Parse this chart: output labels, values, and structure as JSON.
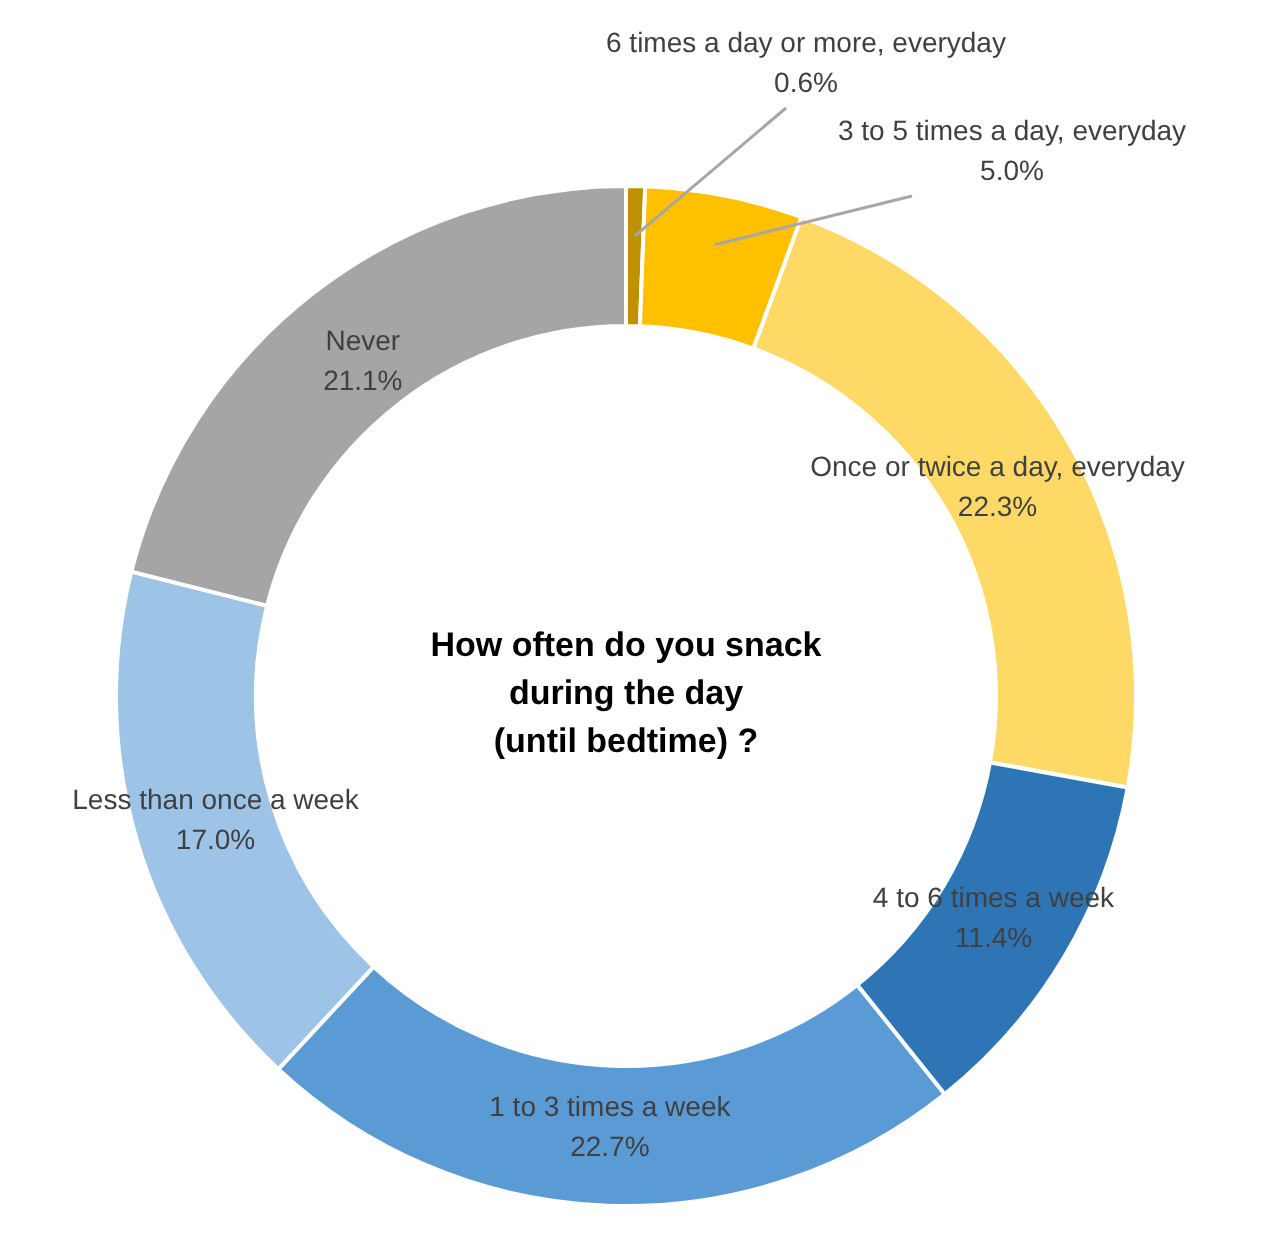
{
  "chart_data": {
    "type": "donut",
    "title": "How often do you snack\nduring the day\n(until bedtime) ?",
    "categories": [
      "6 times a day or more, everyday",
      "3 to 5 times a day, everyday",
      "Once or twice a day, everyday",
      "4 to 6 times a week",
      "1 to 3 times a week",
      "Less than once a week",
      "Never"
    ],
    "values": [
      0.6,
      5.0,
      22.3,
      11.4,
      22.7,
      17.0,
      21.1
    ],
    "value_labels": [
      "0.6%",
      "5.0%",
      "22.3%",
      "11.4%",
      "22.7%",
      "17.0%",
      "21.1%"
    ],
    "colors": [
      "#bf9000",
      "#ffc000",
      "#ffd966",
      "#2e75b6",
      "#5b9bd5",
      "#9dc3e6",
      "#a5a5a5"
    ]
  }
}
